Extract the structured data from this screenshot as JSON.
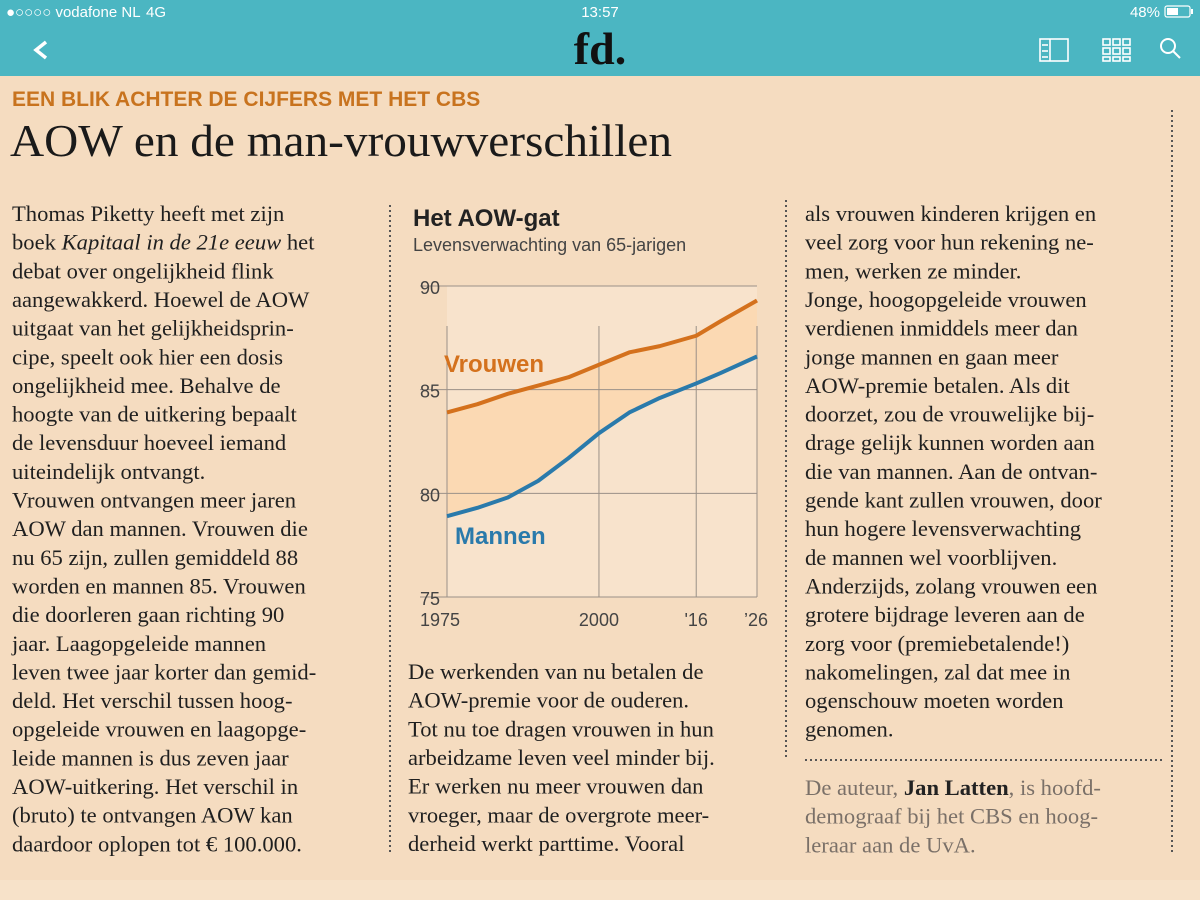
{
  "status_bar": {
    "carrier": "●○○○○ vodafone NL",
    "network": "4G",
    "time": "13:57",
    "battery": "48%"
  },
  "nav": {
    "logo": "fd."
  },
  "article": {
    "kicker": "EEN BLIK ACHTER DE CIJFERS MET HET CBS",
    "headline": "AOW en de man-vrouwverschillen",
    "columns": [
      [
        "Thomas Piketty heeft met zijn",
        {
          "parts": [
            {
              "text": "boek "
            },
            {
              "text": "Kapitaal in de 21e eeuw",
              "italic": true
            },
            {
              "text": " het"
            }
          ]
        },
        "debat over ongelijkheid flink",
        "aangewakkerd. Hoewel de AOW",
        "uitgaat van het gelijkheidsprin-",
        "cipe, speelt ook hier een dosis",
        "ongelijkheid mee. Behalve de",
        "hoogte van de uitkering bepaalt",
        "de levensduur hoeveel iemand",
        "uiteindelijk ontvangt.",
        "Vrouwen ontvangen meer jaren",
        "AOW dan mannen. Vrouwen die",
        "nu 65 zijn, zullen gemiddeld 88",
        "worden en mannen 85. Vrouwen",
        "die doorleren gaan richting 90",
        "jaar. Laagopgeleide mannen",
        "leven twee jaar korter dan gemid-",
        "deld. Het verschil tussen hoog-",
        "opgeleide vrouwen en laagopge-",
        "leide mannen is dus zeven jaar",
        "AOW-uitkering. Het verschil in",
        "(bruto) te ontvangen AOW kan",
        "daardoor oplopen tot € 100.000."
      ],
      [
        "De werkenden van nu betalen de",
        "AOW-premie voor de ouderen.",
        "Tot nu toe dragen vrouwen in hun",
        "arbeidzame leven veel minder bij.",
        "Er werken nu meer vrouwen dan",
        "vroeger, maar de overgrote meer-",
        "derheid werkt parttime. Vooral"
      ],
      [
        "als vrouwen kinderen krijgen en",
        "veel zorg voor hun rekening ne-",
        "men, werken ze minder.",
        "Jonge, hoogopgeleide vrouwen",
        "verdienen inmiddels meer dan",
        "jonge mannen en gaan meer",
        "AOW-premie betalen. Als dit",
        "doorzet, zou de vrouwelijke bij-",
        "drage gelijk kunnen worden aan",
        "die van mannen. Aan de ontvan-",
        "gende kant zullen vrouwen, door",
        "hun hogere levensverwachting",
        "de mannen wel voorblijven.",
        "Anderzijds, zolang vrouwen een",
        "grotere bijdrage leveren aan de",
        "zorg voor (premiebetalende!)",
        "nakomelingen, zal dat mee in",
        "ogenschouw moeten worden",
        "genomen."
      ]
    ],
    "credit": [
      {
        "parts": [
          {
            "text": "De auteur, "
          },
          {
            "text": "Jan Latten",
            "bold": true
          },
          {
            "text": ", is hoofd-"
          }
        ]
      },
      "demograaf bij het CBS en hoog-",
      "leraar aan de UvA."
    ]
  },
  "chart_data": {
    "type": "line",
    "title": "Het AOW-gat",
    "subtitle": "Levensverwachting van 65-jarigen",
    "x": [
      1975,
      1980,
      1985,
      1990,
      1995,
      2000,
      2005,
      2010,
      2016,
      2020,
      2026
    ],
    "series": [
      {
        "name": "Vrouwen",
        "color": "#d4711d",
        "values": [
          83.9,
          84.3,
          84.8,
          85.2,
          85.6,
          86.2,
          86.8,
          87.1,
          87.6,
          88.3,
          89.3
        ]
      },
      {
        "name": "Mannen",
        "color": "#2a7aab",
        "values": [
          78.9,
          79.3,
          79.8,
          80.6,
          81.7,
          82.9,
          83.9,
          84.6,
          85.3,
          85.8,
          86.6
        ]
      }
    ],
    "xlim": [
      1975,
      2026
    ],
    "xticks": [
      1975,
      2000,
      {
        "value": 2016,
        "label": "'16"
      },
      {
        "value": 2026,
        "label": "’26"
      }
    ],
    "ylim": [
      75,
      90
    ],
    "yticks": [
      75,
      80,
      85,
      90
    ],
    "grid": true
  }
}
